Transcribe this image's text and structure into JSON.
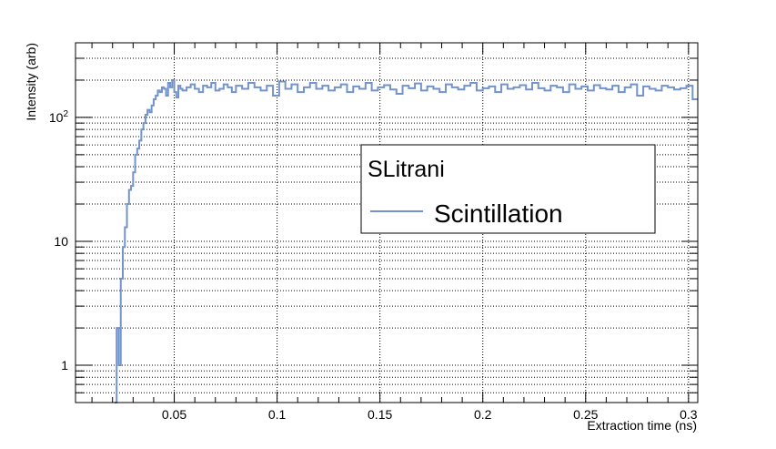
{
  "chart_data": {
    "type": "line",
    "title": "",
    "xlabel": "Extraction time (ns)",
    "ylabel": "Intensity (arb)",
    "xlim": [
      0.002,
      0.3045
    ],
    "ylim": [
      0.5,
      400
    ],
    "yscale": "log",
    "grid": true,
    "x_ticks": [
      0.05,
      0.1,
      0.15,
      0.2,
      0.25,
      0.3
    ],
    "x_tick_labels": [
      "0.05",
      "0.1",
      "0.15",
      "0.2",
      "0.25",
      "0.3"
    ],
    "y_ticks": [
      1,
      10,
      100
    ],
    "y_tick_labels": [
      "1",
      "10",
      "10^2"
    ],
    "legend": {
      "title": "SLitrani",
      "placement": "center-right",
      "entries": [
        "Scintillation"
      ]
    },
    "series": [
      {
        "name": "Scintillation",
        "color": "#7293cb",
        "drawstyle": "steps",
        "x": [
          0.021,
          0.022,
          0.023,
          0.024,
          0.025,
          0.026,
          0.027,
          0.028,
          0.029,
          0.03,
          0.031,
          0.032,
          0.033,
          0.034,
          0.035,
          0.036,
          0.037,
          0.038,
          0.039,
          0.04,
          0.041,
          0.042,
          0.043,
          0.044,
          0.045,
          0.046,
          0.047,
          0.048,
          0.049,
          0.05,
          0.051,
          0.052,
          0.053,
          0.054,
          0.056,
          0.058,
          0.06,
          0.062,
          0.064,
          0.066,
          0.068,
          0.07,
          0.072,
          0.074,
          0.076,
          0.078,
          0.08,
          0.083,
          0.086,
          0.089,
          0.092,
          0.095,
          0.098,
          0.101,
          0.104,
          0.107,
          0.11,
          0.113,
          0.116,
          0.119,
          0.122,
          0.125,
          0.128,
          0.131,
          0.134,
          0.137,
          0.14,
          0.143,
          0.146,
          0.149,
          0.152,
          0.155,
          0.158,
          0.161,
          0.164,
          0.167,
          0.17,
          0.173,
          0.176,
          0.179,
          0.182,
          0.185,
          0.188,
          0.191,
          0.194,
          0.197,
          0.2,
          0.203,
          0.206,
          0.209,
          0.212,
          0.215,
          0.218,
          0.221,
          0.224,
          0.227,
          0.23,
          0.233,
          0.236,
          0.239,
          0.242,
          0.245,
          0.248,
          0.251,
          0.254,
          0.257,
          0.26,
          0.263,
          0.266,
          0.269,
          0.272,
          0.275,
          0.278,
          0.281,
          0.284,
          0.287,
          0.29,
          0.293,
          0.296,
          0.299,
          0.302
        ],
        "y": [
          0.4,
          2,
          1,
          5,
          9,
          13,
          20,
          26,
          28,
          36,
          50,
          56,
          65,
          80,
          90,
          105,
          115,
          110,
          125,
          140,
          150,
          165,
          160,
          175,
          170,
          150,
          190,
          175,
          200,
          160,
          145,
          180,
          170,
          165,
          175,
          185,
          170,
          160,
          180,
          175,
          190,
          165,
          170,
          185,
          175,
          160,
          180,
          170,
          190,
          175,
          165,
          180,
          150,
          195,
          170,
          185,
          160,
          175,
          190,
          170,
          180,
          165,
          175,
          185,
          160,
          178,
          170,
          190,
          165,
          175,
          182,
          168,
          155,
          180,
          172,
          188,
          165,
          178,
          170,
          160,
          185,
          175,
          168,
          180,
          190,
          165,
          172,
          178,
          160,
          185,
          170,
          175,
          182,
          168,
          190,
          172,
          165,
          180,
          175,
          160,
          185,
          170,
          178,
          165,
          182,
          172,
          168,
          180,
          160,
          175,
          185,
          150,
          178,
          170,
          165,
          180,
          175,
          168,
          172,
          180,
          140
        ]
      }
    ]
  }
}
